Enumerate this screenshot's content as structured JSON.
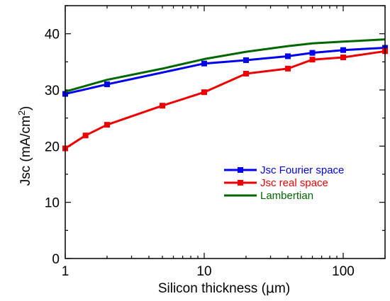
{
  "chart_data": {
    "type": "line",
    "xlabel_prefix": "Silicon thickness (",
    "xlabel_unit": "μ",
    "xlabel_suffix": "m)",
    "ylabel_main": "Jsc (mA/cm",
    "ylabel_sup": "2",
    "ylabel_close": ")",
    "xscale": "log",
    "xlim": [
      1,
      200
    ],
    "ylim": [
      0,
      45
    ],
    "x_ticks": [
      1,
      10,
      100
    ],
    "x_tick_labels": [
      "1",
      "10",
      "100"
    ],
    "y_ticks": [
      0,
      10,
      20,
      30,
      40
    ],
    "y_tick_labels": [
      "0",
      "10",
      "20",
      "30",
      "40"
    ],
    "grid": false,
    "legend_position": "inside lower-right",
    "series": [
      {
        "name": "Jsc Fourier space",
        "color": "#0000ee",
        "marker": "square",
        "points": [
          [
            1,
            29.3
          ],
          [
            2,
            31.0
          ],
          [
            10,
            34.7
          ],
          [
            20,
            35.3
          ],
          [
            40,
            36.0
          ],
          [
            60,
            36.6
          ],
          [
            100,
            37.1
          ],
          [
            200,
            37.5
          ]
        ]
      },
      {
        "name": "Jsc real space",
        "color": "#ee0000",
        "marker": "square",
        "points": [
          [
            1,
            19.6
          ],
          [
            1.4,
            21.9
          ],
          [
            2,
            23.8
          ],
          [
            5,
            27.2
          ],
          [
            10,
            29.6
          ],
          [
            20,
            32.9
          ],
          [
            40,
            33.8
          ],
          [
            60,
            35.4
          ],
          [
            100,
            35.8
          ],
          [
            200,
            36.9
          ]
        ]
      },
      {
        "name": "Lambertian",
        "color": "#006600",
        "marker": "none",
        "points": [
          [
            1,
            29.7
          ],
          [
            2,
            31.8
          ],
          [
            5,
            33.8
          ],
          [
            10,
            35.5
          ],
          [
            20,
            36.8
          ],
          [
            40,
            37.8
          ],
          [
            60,
            38.3
          ],
          [
            100,
            38.6
          ],
          [
            200,
            39.0
          ]
        ]
      }
    ]
  }
}
